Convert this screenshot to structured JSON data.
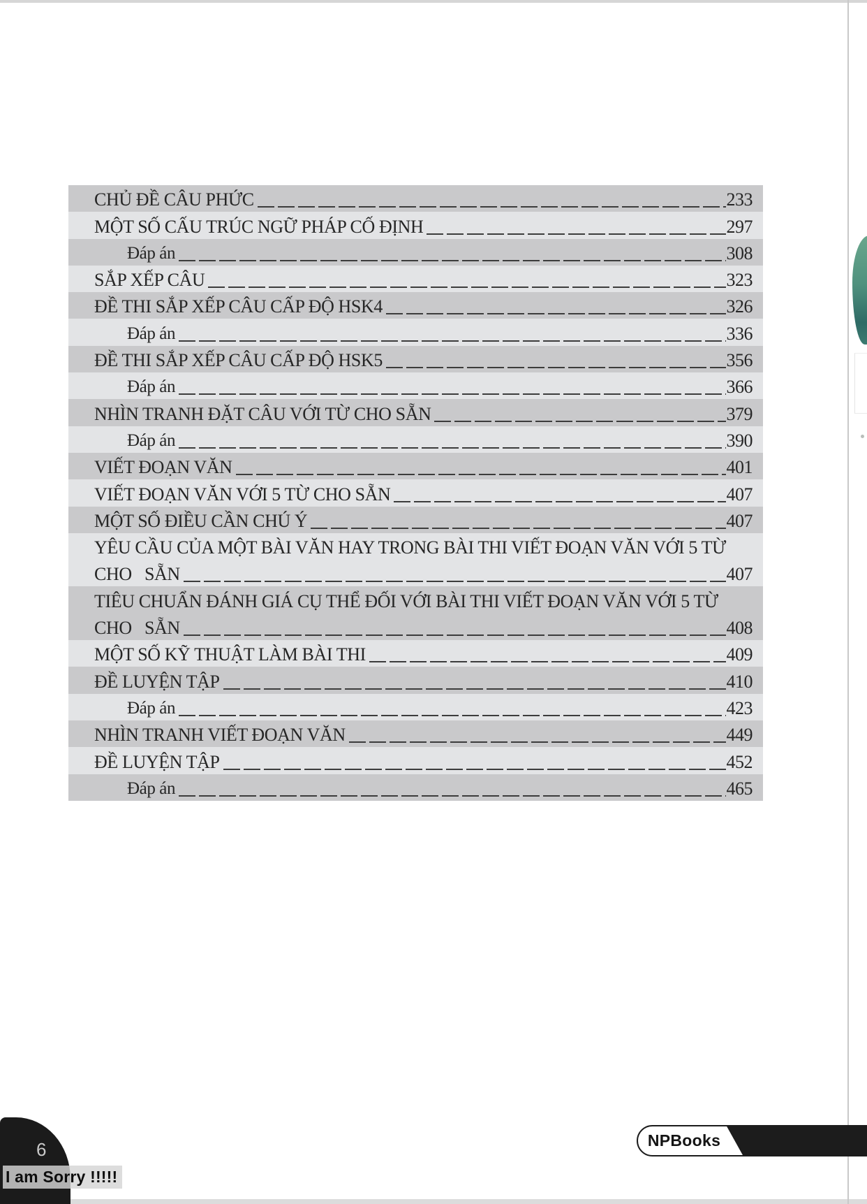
{
  "toc": {
    "stripe_dark": "#c9c9cb",
    "stripe_light": "#e3e4e6",
    "text_color": "#262626",
    "rows": [
      {
        "label": "CHỦ ĐỀ CÂU PHỨC",
        "page": "233"
      },
      {
        "label": "MỘT SỐ CẤU TRÚC NGỮ PHÁP CỐ ĐỊNH",
        "page": "297"
      },
      {
        "label": "Đáp án",
        "page": "308",
        "indent": true
      },
      {
        "label": "SẮP XẾP CÂU",
        "page": "323"
      },
      {
        "label": "ĐỀ THI SẮP XẾP CÂU CẤP ĐỘ HSK4",
        "page": "326"
      },
      {
        "label": "Đáp án",
        "page": "336",
        "indent": true
      },
      {
        "label": "ĐỀ THI SẮP XẾP CÂU CẤP ĐỘ HSK5",
        "page": "356"
      },
      {
        "label": "Đáp án",
        "page": "366",
        "indent": true
      },
      {
        "label": "NHÌN TRANH ĐẶT CÂU VỚI TỪ CHO SẴN",
        "page": "379"
      },
      {
        "label": "Đáp án",
        "page": "390",
        "indent": true
      },
      {
        "label": "VIẾT ĐOẠN VĂN",
        "page": "401"
      },
      {
        "label": "VIẾT ĐOẠN VĂN VỚI 5 TỪ CHO SẴN",
        "page": "407"
      },
      {
        "label": "MỘT SỐ ĐIỀU CẦN CHÚ Ý",
        "page": "407"
      },
      {
        "label": "YÊU CẦU CỦA MỘT BÀI VĂN HAY TRONG BÀI THI VIẾT ĐOẠN VĂN VỚI 5 TỪ",
        "label_line2": "CHO   SẴN",
        "page": "407"
      },
      {
        "label": "TIÊU CHUẨN ĐÁNH GIÁ CỤ THỂ ĐỐI VỚI BÀI THI VIẾT ĐOẠN VĂN VỚI 5 TỪ",
        "label_line2": "CHO   SẴN",
        "page": "408"
      },
      {
        "label": "MỘT SỐ KỸ THUẬT LÀM BÀI THI",
        "page": "409"
      },
      {
        "label": "ĐỀ LUYỆN TẬP",
        "page": "410"
      },
      {
        "label": "Đáp án",
        "page": "423",
        "indent": true
      },
      {
        "label": "NHÌN TRANH VIẾT ĐOẠN VĂN",
        "page": "449"
      },
      {
        "label": "ĐỀ LUYỆN TẬP",
        "page": "452"
      },
      {
        "label": "Đáp án",
        "page": "465",
        "indent": true
      }
    ]
  },
  "footer": {
    "page_number": "6",
    "watermark": "I am Sorry !!!!!",
    "publisher": "NPBooks"
  },
  "decor": {
    "leaf_green_top": "#6aa78d",
    "leaf_teal_bottom": "#2f6b66",
    "ribbon_black": "#1c1c1c"
  }
}
